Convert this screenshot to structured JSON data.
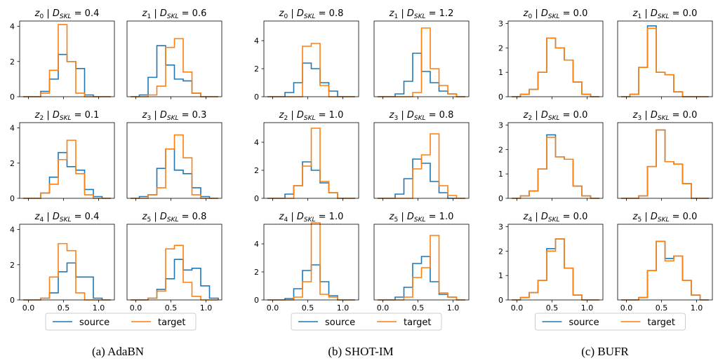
{
  "colors": {
    "source": "#1f77b4",
    "target": "#ff7f0e"
  },
  "groups": [
    {
      "caption": "(a) AdaBN"
    },
    {
      "caption": "(b) SHOT-IM"
    },
    {
      "caption": "(c) BUFR"
    }
  ],
  "chart_data": {
    "type": "histogram-grid",
    "bin_edges": [
      -0.075,
      0.05,
      0.175,
      0.3,
      0.425,
      0.55,
      0.675,
      0.8,
      0.925,
      1.05,
      1.175
    ],
    "xticks": [
      0.0,
      0.5,
      1.0
    ],
    "legend": {
      "labels": [
        "source",
        "target"
      ],
      "placement": "below-each-group"
    },
    "grid": false,
    "groups": [
      {
        "name": "AdaBN",
        "ylim": [
          0,
          4.3
        ],
        "yticks": [
          0,
          2,
          4
        ],
        "panels": [
          {
            "var": "0",
            "skl": "0.4",
            "source": [
              0,
              0,
              0.3,
              1.0,
              2.4,
              2.0,
              1.6,
              0.1,
              0,
              0
            ],
            "target": [
              0,
              0,
              0.2,
              1.5,
              4.1,
              2.0,
              0.2,
              0,
              0,
              0
            ]
          },
          {
            "var": "1",
            "skl": "0.6",
            "source": [
              0,
              0.1,
              1.1,
              2.9,
              1.8,
              1.0,
              0.9,
              0.2,
              0,
              0
            ],
            "target": [
              0,
              0,
              0.1,
              0.6,
              2.8,
              3.3,
              1.4,
              0.2,
              0,
              0
            ]
          },
          {
            "var": "2",
            "skl": "0.1",
            "source": [
              0,
              0,
              0.3,
              1.2,
              2.6,
              1.8,
              1.6,
              0.5,
              0.1,
              0
            ],
            "target": [
              0,
              0,
              0.3,
              0.8,
              2.2,
              3.3,
              1.4,
              0.2,
              0,
              0
            ]
          },
          {
            "var": "3",
            "skl": "0.3",
            "source": [
              0,
              0.1,
              0.2,
              1.7,
              2.8,
              1.6,
              1.4,
              0.6,
              0.1,
              0
            ],
            "target": [
              0,
              0,
              0.2,
              0.6,
              2.8,
              3.6,
              2.3,
              0.2,
              0,
              0
            ]
          },
          {
            "var": "4",
            "skl": "0.4",
            "source": [
              0,
              0,
              0.1,
              0.4,
              1.6,
              2.1,
              1.3,
              1.3,
              0.1,
              0
            ],
            "target": [
              0,
              0,
              0.1,
              1.3,
              3.2,
              2.8,
              0.4,
              0,
              0,
              0
            ]
          },
          {
            "var": "5",
            "skl": "0.8",
            "source": [
              0,
              0,
              0.1,
              0.6,
              1.2,
              2.3,
              1.7,
              1.8,
              0.8,
              0.1
            ],
            "target": [
              0,
              0,
              0.1,
              0.5,
              2.9,
              3.1,
              1.0,
              0.2,
              0,
              0
            ]
          }
        ]
      },
      {
        "name": "SHOT-IM",
        "ylim": [
          0,
          5.4
        ],
        "yticks": [
          0,
          2,
          4
        ],
        "panels": [
          {
            "var": "0",
            "skl": "0.8",
            "source": [
              0,
              0,
              0.3,
              1.0,
              2.4,
              2.0,
              1.0,
              0.4,
              0,
              0
            ],
            "target": [
              0,
              0,
              0,
              0,
              3.6,
              3.8,
              0.8,
              0,
              0,
              0
            ]
          },
          {
            "var": "1",
            "skl": "1.2",
            "source": [
              0,
              0,
              0.2,
              1.1,
              3.1,
              1.8,
              1.0,
              0.4,
              0.2,
              0
            ],
            "target": [
              0,
              0,
              0,
              0,
              0.3,
              4.9,
              2.0,
              0.8,
              0.2,
              0
            ]
          },
          {
            "var": "2",
            "skl": "1.0",
            "source": [
              0,
              0,
              0.3,
              0.9,
              2.6,
              2.0,
              1.1,
              0.4,
              0,
              0
            ],
            "target": [
              0,
              0,
              0,
              0.9,
              2.3,
              5.0,
              1.2,
              0.4,
              0,
              0
            ]
          },
          {
            "var": "3",
            "skl": "0.8",
            "source": [
              0,
              0,
              0.3,
              1.4,
              2.8,
              2.5,
              1.2,
              0.4,
              0,
              0
            ],
            "target": [
              0,
              0,
              0,
              0,
              2.1,
              3.1,
              4.6,
              0.9,
              0.2,
              0
            ]
          },
          {
            "var": "4",
            "skl": "1.0",
            "source": [
              0,
              0,
              0.1,
              0.8,
              2.1,
              2.5,
              1.3,
              0.3,
              0,
              0
            ],
            "target": [
              0,
              0,
              0,
              0.2,
              1.3,
              5.5,
              0.4,
              0.2,
              0,
              0
            ]
          },
          {
            "var": "5",
            "skl": "1.0",
            "source": [
              0,
              0,
              0.2,
              0.9,
              2.6,
              3.1,
              1.3,
              0.4,
              0.2,
              0
            ],
            "target": [
              0,
              0,
              0,
              0.2,
              1.6,
              2.3,
              4.6,
              0.5,
              0.2,
              0
            ]
          }
        ]
      },
      {
        "name": "BUFR",
        "ylim": [
          0,
          3.1
        ],
        "yticks": [
          0,
          1,
          2,
          3
        ],
        "panels": [
          {
            "var": "0",
            "skl": "0.0",
            "source": [
              0,
              0.1,
              0.3,
              1.0,
              2.4,
              2.0,
              1.5,
              0.6,
              0.1,
              0
            ],
            "target": [
              0,
              0.1,
              0.3,
              1.0,
              2.4,
              2.0,
              1.5,
              0.6,
              0.1,
              0
            ]
          },
          {
            "var": "1",
            "skl": "0.0",
            "source": [
              0,
              0.1,
              1.2,
              2.9,
              1.0,
              0.9,
              0.2,
              0,
              0,
              0
            ],
            "target": [
              0,
              0.1,
              1.2,
              2.8,
              1.0,
              0.9,
              0.2,
              0,
              0,
              0
            ]
          },
          {
            "var": "2",
            "skl": "0.0",
            "source": [
              0,
              0.1,
              0.3,
              1.2,
              2.6,
              1.7,
              1.6,
              0.5,
              0.1,
              0
            ],
            "target": [
              0,
              0.1,
              0.3,
              1.2,
              2.5,
              1.7,
              1.6,
              0.5,
              0.1,
              0
            ]
          },
          {
            "var": "3",
            "skl": "0.0",
            "source": [
              0,
              0,
              0.1,
              1.3,
              2.8,
              1.5,
              1.4,
              0.6,
              0,
              0
            ],
            "target": [
              0,
              0,
              0.1,
              1.3,
              2.8,
              1.5,
              1.4,
              0.6,
              0,
              0
            ]
          },
          {
            "var": "4",
            "skl": "0.0",
            "source": [
              0,
              0.1,
              0.3,
              0.8,
              2.1,
              2.5,
              1.3,
              0.2,
              0,
              0
            ],
            "target": [
              0,
              0.1,
              0.3,
              0.8,
              2.0,
              2.5,
              1.3,
              0.2,
              0,
              0
            ]
          },
          {
            "var": "5",
            "skl": "0.0",
            "source": [
              0,
              0,
              0.1,
              1.2,
              2.4,
              1.7,
              1.8,
              0.8,
              0.2,
              0
            ],
            "target": [
              0,
              0,
              0.1,
              1.2,
              2.4,
              1.6,
              1.8,
              0.8,
              0.2,
              0
            ]
          }
        ]
      }
    ]
  }
}
